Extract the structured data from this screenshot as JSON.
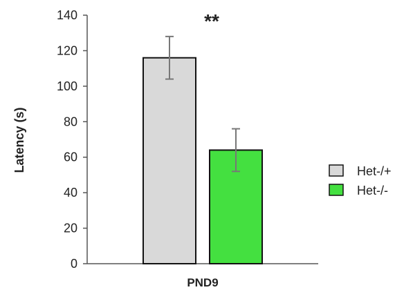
{
  "chart_data": {
    "type": "bar",
    "categories": [
      "PND9"
    ],
    "series": [
      {
        "name": "Het-/+",
        "values": [
          116
        ],
        "error": [
          12
        ],
        "color": "#d9d9d9"
      },
      {
        "name": "Het-/-",
        "values": [
          64
        ],
        "error": [
          12
        ],
        "color": "#44e040"
      }
    ],
    "ylabel": "Latency (s)",
    "xlabel": "",
    "ylim": [
      0,
      140
    ],
    "yticks": [
      0,
      20,
      40,
      60,
      80,
      100,
      120,
      140
    ],
    "annotation": "**",
    "legend_position": "right",
    "grid": false
  }
}
